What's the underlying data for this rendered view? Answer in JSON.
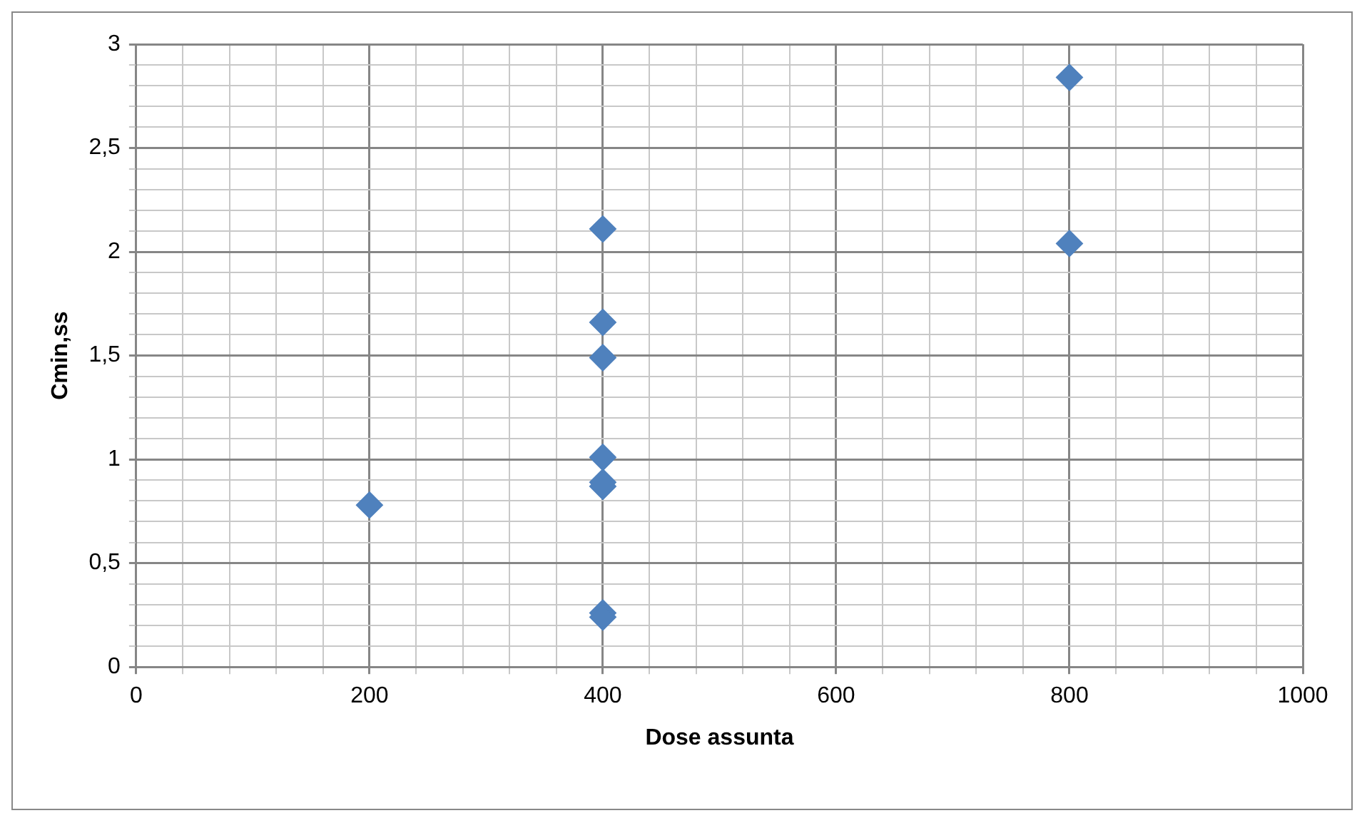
{
  "chart_data": {
    "type": "scatter",
    "xlabel": "Dose assunta",
    "ylabel": "Cmin,ss",
    "x": [
      200,
      400,
      400,
      400,
      400,
      400,
      400,
      400,
      400,
      800,
      800
    ],
    "values": [
      0.78,
      2.11,
      1.66,
      1.49,
      1.01,
      0.89,
      0.87,
      0.26,
      0.24,
      2.84,
      2.04
    ],
    "color": "#4f81bd",
    "marker": "diamond",
    "grid": true,
    "legend": false,
    "xlim": [
      0,
      1000
    ],
    "xticks": [
      0,
      {
        "value": 40,
        "label": null
      },
      {
        "value": 80,
        "label": null
      },
      {
        "value": 120,
        "label": null
      },
      {
        "value": 160,
        "label": null
      },
      200,
      {
        "value": 240,
        "label": null
      },
      {
        "value": 280,
        "label": null
      },
      {
        "value": 320,
        "label": null
      },
      {
        "value": 360,
        "label": null
      },
      400,
      {
        "value": 440,
        "label": null
      },
      {
        "value": 480,
        "label": null
      },
      {
        "value": 520,
        "label": null
      },
      {
        "value": 560,
        "label": null
      },
      600,
      {
        "value": 640,
        "label": null
      },
      {
        "value": 680,
        "label": null
      },
      {
        "value": 720,
        "label": null
      },
      {
        "value": 760,
        "label": null
      },
      800,
      {
        "value": 840,
        "label": null
      },
      {
        "value": 880,
        "label": null
      },
      {
        "value": 920,
        "label": null
      },
      {
        "value": 960,
        "label": null
      },
      1000
    ],
    "ylim": [
      0,
      3
    ],
    "yticks": [
      0,
      {
        "value": 0.1,
        "label": null
      },
      {
        "value": 0.2,
        "label": null
      },
      {
        "value": 0.3,
        "label": null
      },
      {
        "value": 0.4,
        "label": null
      },
      {
        "value": 0.5,
        "label": "0,5"
      },
      {
        "value": 0.6,
        "label": null
      },
      {
        "value": 0.7,
        "label": null
      },
      {
        "value": 0.8,
        "label": null
      },
      {
        "value": 0.9,
        "label": null
      },
      1,
      {
        "value": 1.1,
        "label": null
      },
      {
        "value": 1.2,
        "label": null
      },
      {
        "value": 1.3,
        "label": null
      },
      {
        "value": 1.4,
        "label": null
      },
      {
        "value": 1.5,
        "label": "1,5"
      },
      {
        "value": 1.6,
        "label": null
      },
      {
        "value": 1.7,
        "label": null
      },
      {
        "value": 1.8,
        "label": null
      },
      {
        "value": 1.9,
        "label": null
      },
      2,
      {
        "value": 2.1,
        "label": null
      },
      {
        "value": 2.2,
        "label": null
      },
      {
        "value": 2.3,
        "label": null
      },
      {
        "value": 2.4,
        "label": null
      },
      {
        "value": 2.5,
        "label": "2,5"
      },
      {
        "value": 2.6,
        "label": null
      },
      {
        "value": 2.7,
        "label": null
      },
      {
        "value": 2.8,
        "label": null
      },
      {
        "value": 2.9,
        "label": null
      },
      3
    ]
  }
}
